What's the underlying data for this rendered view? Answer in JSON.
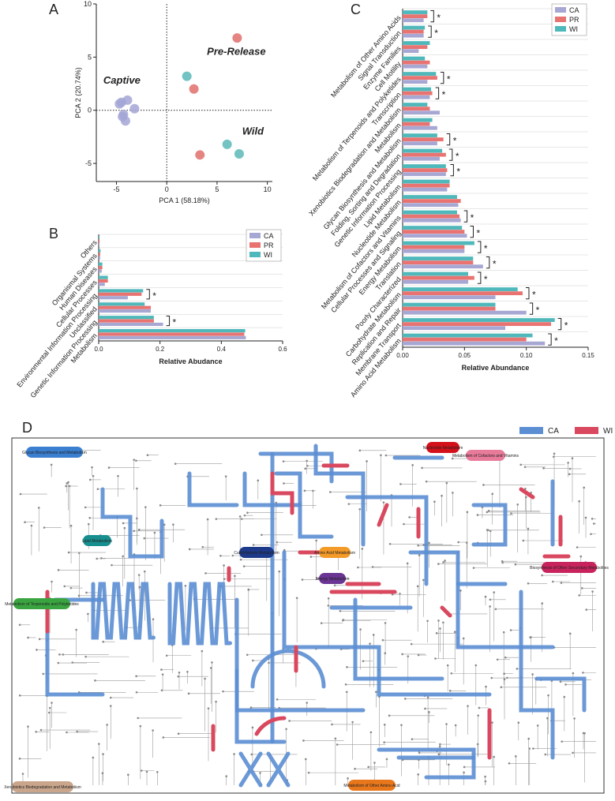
{
  "chart_data": [
    {
      "panel": "A",
      "type": "scatter",
      "xlabel": "PCA 1 (58.18%)",
      "ylabel": "PCA 2 (20.74%)",
      "xlim": [
        -7,
        10.5
      ],
      "ylim": [
        -6.7,
        10
      ],
      "xticks": [
        -5,
        0,
        5,
        10
      ],
      "yticks": [
        -5,
        0,
        5,
        10
      ],
      "series": [
        {
          "name": "Captive",
          "color": "#a3a6d6",
          "x": [
            -4.7,
            -4.5,
            -3.9,
            -3.2,
            -4.3,
            -4.1,
            -4.4
          ],
          "values": [
            0.6,
            0.75,
            0.95,
            0.15,
            -0.4,
            -1.0,
            -0.6
          ]
        },
        {
          "name": "Pre-Release",
          "color": "#e0706c",
          "x": [
            7.0,
            2.7,
            3.3
          ],
          "values": [
            6.8,
            2.0,
            -4.2
          ]
        },
        {
          "name": "Wild",
          "color": "#5ab8b8",
          "x": [
            2.0,
            6.0,
            7.2
          ],
          "values": [
            3.2,
            -3.2,
            -4.1
          ]
        }
      ]
    },
    {
      "panel": "B",
      "type": "bar",
      "orientation": "horizontal",
      "xlabel": "Relative Abudance",
      "legend": "upper right",
      "grid": true,
      "xlim": [
        0,
        0.6
      ],
      "xticks": [
        {
          "value": 0,
          "label": "0.0"
        },
        0.2,
        0.4,
        0.6
      ],
      "categories": [
        "Others",
        "Organismal Systems",
        "Human Diseases",
        "Cellular Processes",
        "Environmental Information Processing",
        "Unclassified",
        "Genetic Information Processing",
        "Metabolism"
      ],
      "series": [
        {
          "name": "CA",
          "color": "#a7a7d4",
          "values": [
            0.003,
            0.005,
            0.01,
            0.02,
            0.095,
            0.17,
            0.21,
            0.48
          ]
        },
        {
          "name": "PR",
          "color": "#e87370",
          "values": [
            0.003,
            0.005,
            0.012,
            0.03,
            0.14,
            0.17,
            0.18,
            0.475
          ]
        },
        {
          "name": "WI",
          "color": "#4fb8bb",
          "values": [
            0.003,
            0.006,
            0.012,
            0.03,
            0.145,
            0.15,
            0.18,
            0.478
          ]
        }
      ],
      "significance": [
        null,
        null,
        null,
        null,
        "*",
        null,
        "*",
        null
      ]
    },
    {
      "panel": "C",
      "type": "bar",
      "orientation": "horizontal",
      "xlabel": "Relative Abundance",
      "legend": "upper right",
      "grid": true,
      "xlim": [
        0,
        0.15
      ],
      "xticks": [
        {
          "value": 0,
          "label": "0.00"
        },
        0.05,
        {
          "value": 0.1,
          "label": "0.10"
        },
        0.15
      ],
      "categories": [
        "Metabolism of Other Amino Acids",
        "Signal Transduction",
        "Enzyme Families",
        "Cell Motility",
        "Metabolism of Terpenoids and Polyketides",
        "Transcription",
        "Xenobiotics Biodegradation and Metabolism",
        "Metabolism",
        "Glycan Biosynthesis and Metabolism",
        "Folding, Sorting and Degradation",
        "Genetic Information Processing",
        "Lipid Metabolism",
        "Nucleotide Metabolism",
        "Metabolism of Cofactors and Vitamins",
        "Cellular Processes and Signaling",
        "Energy Metabolism",
        "Translation",
        "Poorly Characterized",
        "Carbohydrate Metabolism",
        "Replication and Repair",
        "Membrane Transport",
        "Amino Acid Metabolism"
      ],
      "series": [
        {
          "name": "CA",
          "color": "#a7a7d4",
          "values": [
            0.017,
            0.017,
            0.013,
            0.02,
            0.02,
            0.022,
            0.03,
            0.028,
            0.028,
            0.03,
            0.035,
            0.036,
            0.045,
            0.047,
            0.052,
            0.05,
            0.065,
            0.053,
            0.075,
            0.1,
            0.083,
            0.115
          ]
        },
        {
          "name": "PR",
          "color": "#e87370",
          "values": [
            0.02,
            0.017,
            0.02,
            0.022,
            0.028,
            0.024,
            0.022,
            0.022,
            0.033,
            0.035,
            0.036,
            0.038,
            0.047,
            0.046,
            0.05,
            0.05,
            0.057,
            0.058,
            0.097,
            0.075,
            0.12,
            0.1
          ]
        },
        {
          "name": "WI",
          "color": "#4fb8bb",
          "values": [
            0.02,
            0.018,
            0.022,
            0.018,
            0.027,
            0.023,
            0.02,
            0.024,
            0.028,
            0.032,
            0.035,
            0.038,
            0.044,
            0.044,
            0.048,
            0.058,
            0.057,
            0.053,
            0.093,
            0.075,
            0.123,
            0.105
          ]
        }
      ],
      "significance": [
        "*",
        "*",
        null,
        null,
        "*",
        "*",
        null,
        null,
        "*",
        "*",
        "*",
        null,
        null,
        "*",
        "*",
        "*",
        "*",
        "*",
        "*",
        "*",
        "*",
        "*"
      ]
    }
  ],
  "pathway_map": {
    "panel": "D",
    "legend": [
      {
        "label": "CA",
        "color": "#5b8ed3"
      },
      {
        "label": "WI",
        "color": "#d9485e"
      }
    ],
    "modules": [
      {
        "label": "Glycan Biosynthesis and Metabolism",
        "color": "#3a7fd0"
      },
      {
        "label": "Nucleotide Metabolism",
        "color": "#d4101a"
      },
      {
        "label": "Metabolism of Cofactors and Vitamins",
        "color": "#e87a9a"
      },
      {
        "label": "Lipid Metabolism",
        "color": "#178f8f"
      },
      {
        "label": "Carbohydrate Metabolism",
        "color": "#1d3a8a"
      },
      {
        "label": "Amino Acid Metabolism",
        "color": "#f39a28"
      },
      {
        "label": "Energy Metabolism",
        "color": "#6a3594"
      },
      {
        "label": "Biosynthesis of Other Secondary Metabolites",
        "color": "#c8235d"
      },
      {
        "label": "Metabolism of Terpenoids and Polyketides",
        "color": "#3aa540"
      },
      {
        "label": "Xenobiotics Biodegradation and Metabolism",
        "color": "#c9a58c"
      },
      {
        "label": "Metabolism of Other Amino Acid",
        "color": "#e8771c"
      }
    ]
  }
}
